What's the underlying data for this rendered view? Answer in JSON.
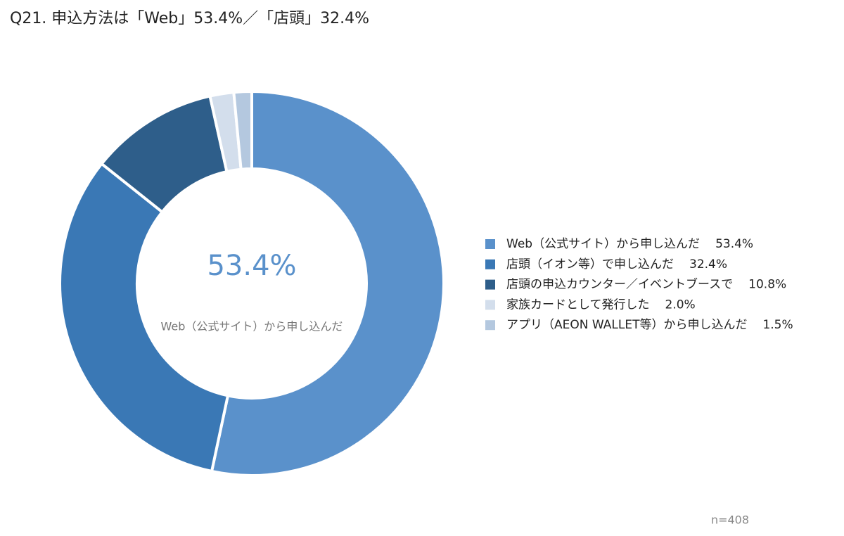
{
  "chart_data": {
    "type": "donut",
    "title": "Q21. 申込方法は「Web」53.4%／「店頭」32.4%",
    "categories": [
      "Web（公式サイト）から申し込んだ",
      "店頭（イオン等）で申し込んだ",
      "店頭の申込カウンター／イベントブースで",
      "家族カードとして発行した",
      "アプリ（AEON WALLET等）から申し込んだ"
    ],
    "values": [
      53.4,
      32.4,
      10.8,
      2.0,
      1.5
    ],
    "value_labels": [
      "53.4%",
      "32.4%",
      "10.8%",
      "2.0%",
      "1.5%"
    ],
    "colors": [
      "#5a91cb",
      "#3a78b5",
      "#2e5e8a",
      "#d3deec",
      "#b4c8df"
    ],
    "note": "n=408"
  }
}
